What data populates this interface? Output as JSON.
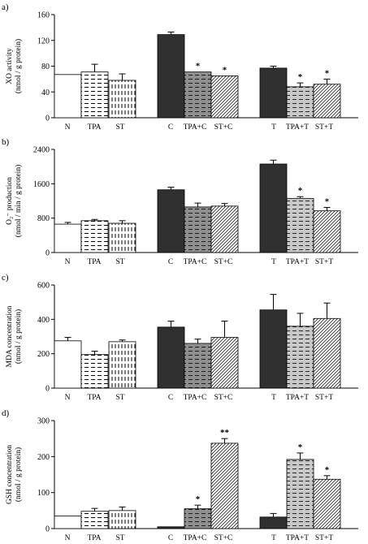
{
  "colors": {
    "black_bar": "#303030",
    "dark_gray_bar": "#8f8f8f",
    "light_gray_bar": "#c8c8c8",
    "white_bar": "#ffffff",
    "axis": "#000000"
  },
  "chart_data": [
    {
      "type": "bar",
      "panel_label": "a)",
      "ylabel_lines": [
        "XO activity",
        "(nmol / g protein)"
      ],
      "ylim": [
        0,
        160
      ],
      "yticks": [
        "0",
        "40",
        "80",
        "120",
        "160"
      ],
      "categories": [
        "N",
        "TPA",
        "ST",
        "C",
        "TPA+C",
        "ST+C",
        "T",
        "TPA+T",
        "ST+T"
      ],
      "values": [
        67,
        71,
        58,
        129,
        71,
        65,
        77,
        48,
        52
      ],
      "errors": [
        0,
        12,
        10,
        4,
        0,
        0,
        3,
        6,
        8
      ],
      "significance": [
        "",
        "",
        "",
        "",
        "*",
        "*",
        "",
        "*",
        "*"
      ],
      "grid": false
    },
    {
      "type": "bar",
      "panel_label": "b)",
      "ylabel_lines": [
        "O₂⁻ production",
        "(nmol / min / g protein)"
      ],
      "ylim": [
        0,
        2400
      ],
      "yticks": [
        "0",
        "800",
        "1600",
        "2400"
      ],
      "categories": [
        "N",
        "TPA",
        "ST",
        "C",
        "TPA+C",
        "ST+C",
        "T",
        "TPA+T",
        "ST+T"
      ],
      "values": [
        660,
        740,
        680,
        1460,
        1060,
        1080,
        2060,
        1260,
        970
      ],
      "errors": [
        40,
        30,
        60,
        60,
        90,
        60,
        90,
        40,
        80
      ],
      "significance": [
        "",
        "",
        "",
        "",
        "",
        "",
        "",
        "*",
        "*"
      ],
      "grid": false
    },
    {
      "type": "bar",
      "panel_label": "c)",
      "ylabel_lines": [
        "MDA concentration",
        "(nmol / g protein)"
      ],
      "ylim": [
        0,
        600
      ],
      "yticks": [
        "0",
        "200",
        "400",
        "600"
      ],
      "categories": [
        "N",
        "TPA",
        "ST",
        "C",
        "TPA+C",
        "ST+C",
        "T",
        "TPA+T",
        "ST+T"
      ],
      "values": [
        275,
        195,
        270,
        355,
        260,
        295,
        455,
        360,
        405
      ],
      "errors": [
        20,
        20,
        10,
        35,
        25,
        95,
        90,
        75,
        90
      ],
      "significance": [
        "",
        "",
        "",
        "",
        "",
        "",
        "",
        "",
        ""
      ],
      "grid": false
    },
    {
      "type": "bar",
      "panel_label": "d)",
      "ylabel_lines": [
        "GSH concentration",
        "(nmol / g protein)"
      ],
      "ylim": [
        0,
        300
      ],
      "yticks": [
        "0",
        "100",
        "200",
        "300"
      ],
      "categories": [
        "N",
        "TPA",
        "ST",
        "C",
        "TPA+C",
        "ST+C",
        "T",
        "TPA+T",
        "ST+T"
      ],
      "values": [
        35,
        48,
        50,
        5,
        55,
        237,
        32,
        192,
        137
      ],
      "errors": [
        0,
        8,
        10,
        0,
        10,
        13,
        10,
        18,
        10
      ],
      "significance": [
        "",
        "",
        "",
        "",
        "*",
        "**",
        "",
        "*",
        "*"
      ],
      "grid": false
    }
  ]
}
